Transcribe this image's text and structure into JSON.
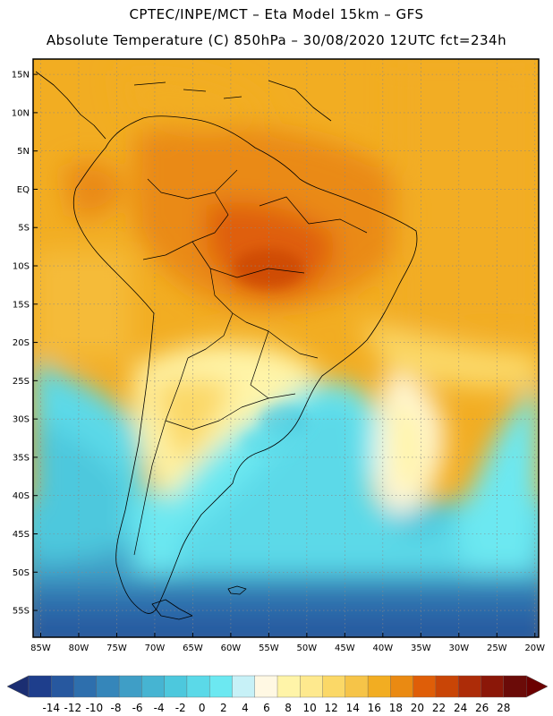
{
  "header": {
    "line1": "CPTEC/INPE/MCT –   Eta Model 15km – GFS",
    "line2": "Absolute Temperature (C) 850hPa – 30/08/2020 12UTC fct=234h"
  },
  "map": {
    "lat_labels": [
      "15N",
      "10N",
      "5N",
      "EQ",
      "5S",
      "10S",
      "15S",
      "20S",
      "25S",
      "30S",
      "35S",
      "40S",
      "45S",
      "50S",
      "55S"
    ],
    "lat_values": [
      15,
      10,
      5,
      0,
      -5,
      -10,
      -15,
      -20,
      -25,
      -30,
      -35,
      -40,
      -45,
      -50,
      -55
    ],
    "lon_labels": [
      "85W",
      "80W",
      "75W",
      "70W",
      "65W",
      "60W",
      "55W",
      "50W",
      "45W",
      "40W",
      "35W",
      "30W",
      "25W",
      "20W"
    ],
    "lon_values": [
      -85,
      -80,
      -75,
      -70,
      -65,
      -60,
      -55,
      -50,
      -45,
      -40,
      -35,
      -30,
      -25,
      -20
    ],
    "extent": {
      "lon_min": -86,
      "lon_max": -19.5,
      "lat_min": -58.5,
      "lat_max": 17
    }
  },
  "colorbar": {
    "labels": [
      "-14",
      "-12",
      "-10",
      "-8",
      "-6",
      "-4",
      "-2",
      "0",
      "2",
      "4",
      "6",
      "8",
      "10",
      "12",
      "14",
      "16",
      "18",
      "20",
      "22",
      "24",
      "26",
      "28"
    ],
    "colors": [
      "#1e3e8c",
      "#27589f",
      "#2e6fad",
      "#3586ba",
      "#3f9ec6",
      "#46b4d2",
      "#4dc8dd",
      "#5bd9e8",
      "#6ce8f1",
      "#c7f1f7",
      "#fff8e3",
      "#fff4a8",
      "#fee98e",
      "#fbd867",
      "#f6c448",
      "#f2ad22",
      "#ea8a12",
      "#df5e08",
      "#c94506",
      "#ad2c08",
      "#8b1708",
      "#6b0b08"
    ],
    "under_color": "#1b2e72",
    "over_color": "#6b0000"
  }
}
